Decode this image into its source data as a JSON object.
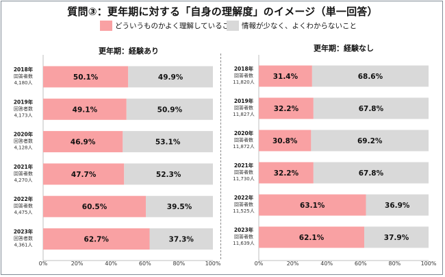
{
  "title": "質問③：更年期に対する「自身の理解度」のイメージ（単一回答）",
  "legend": [
    {
      "label": "どういうものかよく理解していること",
      "color": "#f9a1a3"
    },
    {
      "label": "情報が少なく、よくわからないこと",
      "color": "#d9d9d9"
    }
  ],
  "chart_data": [
    {
      "type": "bar",
      "stacked": "horizontal-100%",
      "title": "更年期：経験あり",
      "categories": [
        {
          "year": "2018年",
          "label": "回答者数",
          "n": "4,180人"
        },
        {
          "year": "2019年",
          "label": "回答者数",
          "n": "4,173人"
        },
        {
          "year": "2020年",
          "label": "回答者数",
          "n": "4,128人"
        },
        {
          "year": "2021年",
          "label": "回答者数",
          "n": "4,270人"
        },
        {
          "year": "2022年",
          "label": "回答者数",
          "n": "4,475人"
        },
        {
          "year": "2023年",
          "label": "回答者数",
          "n": "4,361人"
        }
      ],
      "series": [
        {
          "name": "どういうものかよく理解していること",
          "values": [
            50.1,
            49.1,
            46.9,
            47.7,
            60.5,
            62.7
          ],
          "color": "#f9a1a3"
        },
        {
          "name": "情報が少なく、よくわからないこと",
          "values": [
            49.9,
            50.9,
            53.1,
            52.3,
            39.5,
            37.3
          ],
          "color": "#d9d9d9"
        }
      ],
      "xlim": [
        0,
        100
      ],
      "xticks": [
        "0%",
        "20%",
        "40%",
        "60%",
        "80%",
        "100%"
      ]
    },
    {
      "type": "bar",
      "stacked": "horizontal-100%",
      "title": "更年期：経験なし",
      "categories": [
        {
          "year": "2018年",
          "label": "回答者数",
          "n": "11,820人"
        },
        {
          "year": "2019年",
          "label": "回答者数",
          "n": "11,827人"
        },
        {
          "year": "2020年",
          "label": "回答者数",
          "n": "11,872人"
        },
        {
          "year": "2021年",
          "label": "回答者数",
          "n": "11,730人"
        },
        {
          "year": "2022年",
          "label": "回答者数",
          "n": "11,525人"
        },
        {
          "year": "2023年",
          "label": "回答者数",
          "n": "11,639人"
        }
      ],
      "series": [
        {
          "name": "どういうものかよく理解していること",
          "values": [
            31.4,
            32.2,
            30.8,
            32.2,
            63.1,
            62.1
          ],
          "color": "#f9a1a3"
        },
        {
          "name": "情報が少なく、よくわからないこと",
          "values": [
            68.6,
            67.8,
            69.2,
            67.8,
            36.9,
            37.9
          ],
          "color": "#d9d9d9"
        }
      ],
      "xlim": [
        0,
        100
      ],
      "xticks": [
        "0%",
        "20%",
        "40%",
        "60%",
        "80%",
        "100%"
      ]
    }
  ]
}
